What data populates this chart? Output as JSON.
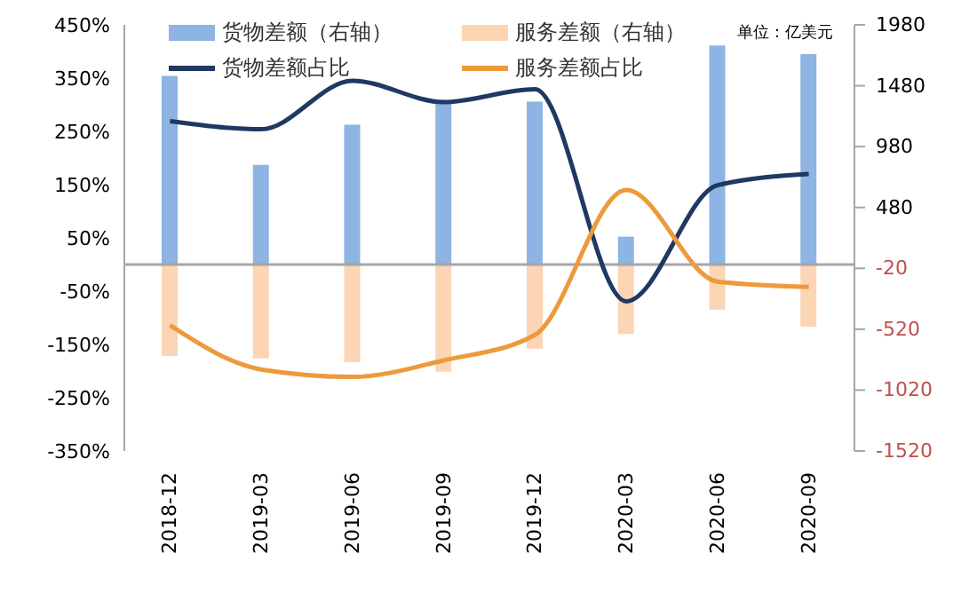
{
  "chart_data": {
    "type": "bar",
    "categories": [
      "2018-12",
      "2019-03",
      "2019-06",
      "2019-09",
      "2019-12",
      "2020-03",
      "2020-06",
      "2020-09"
    ],
    "stacked": true,
    "series": [
      {
        "name": "货物差额（右轴）",
        "axis": "y2",
        "color": "#8db4e2",
        "values": [
          1560,
          830,
          1160,
          1360,
          1350,
          240,
          1810,
          1740
        ]
      },
      {
        "name": "服务差额（右轴）",
        "axis": "y2",
        "color": "#fcd5b4",
        "values": [
          -740,
          -760,
          -790,
          -870,
          -680,
          -560,
          -360,
          -500
        ]
      },
      {
        "name": "货物差额占比",
        "type": "line",
        "axis": "y",
        "color": "#203864",
        "values": [
          269,
          254,
          345,
          305,
          329,
          -69,
          149,
          170
        ]
      },
      {
        "name": "服务差额占比",
        "type": "line",
        "axis": "y",
        "color": "#ed9a3c",
        "values": [
          -114,
          -197,
          -211,
          -180,
          -132,
          140,
          -32,
          -42
        ]
      }
    ],
    "ylim": [
      -350,
      450
    ],
    "yticks": [
      {
        "value": -350,
        "label": "-350%"
      },
      {
        "value": -250,
        "label": "-250%"
      },
      {
        "value": -150,
        "label": "-150%"
      },
      {
        "value": -50,
        "label": "-50%"
      },
      {
        "value": 50,
        "label": "50%"
      },
      {
        "value": 150,
        "label": "150%"
      },
      {
        "value": 250,
        "label": "250%"
      },
      {
        "value": 350,
        "label": "350%"
      },
      {
        "value": 450,
        "label": "450%"
      }
    ],
    "y2lim": [
      -1520,
      1980
    ],
    "y2ticks": [
      -1520,
      -1020,
      -520,
      -20,
      480,
      980,
      1480,
      1980
    ],
    "ref_lines": [
      {
        "axis": "y",
        "value": 0,
        "color": "#a6a6a6"
      }
    ],
    "annotations": [
      "单位：亿美元"
    ],
    "legend": "top",
    "marker": "none"
  }
}
